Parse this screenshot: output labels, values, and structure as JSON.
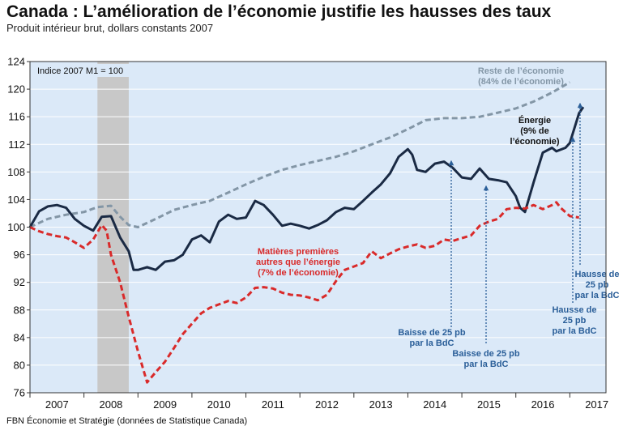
{
  "chart_data": {
    "type": "line",
    "title": "Canada : L’amélioration de l’économie justifie les hausses des taux",
    "subtitle": "Produit intérieur brut, dollars constants 2007",
    "index_note": "Indice 2007 M1 = 100",
    "source": "FBN Économie et Stratégie (données de Statistique Canada)",
    "ylim": [
      76,
      124
    ],
    "yticks": [
      76,
      80,
      84,
      88,
      92,
      96,
      100,
      104,
      108,
      112,
      116,
      120,
      124
    ],
    "xlim": [
      2007.0,
      2017.67
    ],
    "year_labels": [
      "2007",
      "2008",
      "2009",
      "2010",
      "2011",
      "2012",
      "2013",
      "2014",
      "2015",
      "2016",
      "2017"
    ],
    "recession_shading": [
      2008.25,
      2008.83
    ],
    "series": [
      {
        "name": "Reste de l’économie (84% de l’économie)",
        "color": "#8396a6",
        "style": "dashed",
        "points": [
          [
            2007.0,
            100.0
          ],
          [
            2007.33,
            101.2
          ],
          [
            2007.67,
            101.8
          ],
          [
            2008.0,
            102.2
          ],
          [
            2008.25,
            102.9
          ],
          [
            2008.5,
            103.1
          ],
          [
            2008.67,
            101.5
          ],
          [
            2008.83,
            100.3
          ],
          [
            2009.0,
            100.0
          ],
          [
            2009.33,
            101.2
          ],
          [
            2009.67,
            102.5
          ],
          [
            2010.0,
            103.2
          ],
          [
            2010.33,
            103.8
          ],
          [
            2010.67,
            105.0
          ],
          [
            2011.0,
            106.2
          ],
          [
            2011.33,
            107.3
          ],
          [
            2011.67,
            108.3
          ],
          [
            2012.0,
            109.0
          ],
          [
            2012.33,
            109.6
          ],
          [
            2012.67,
            110.2
          ],
          [
            2013.0,
            111.0
          ],
          [
            2013.33,
            112.0
          ],
          [
            2013.67,
            113.0
          ],
          [
            2014.0,
            114.2
          ],
          [
            2014.33,
            115.5
          ],
          [
            2014.67,
            115.8
          ],
          [
            2015.0,
            115.8
          ],
          [
            2015.33,
            116.0
          ],
          [
            2015.67,
            116.6
          ],
          [
            2016.0,
            117.2
          ],
          [
            2016.33,
            118.2
          ],
          [
            2016.67,
            119.5
          ],
          [
            2017.0,
            121.0
          ]
        ]
      },
      {
        "name": "Énergie (9% de l’économie)",
        "color": "#1a2a44",
        "style": "solid",
        "points": [
          [
            2007.0,
            100.0
          ],
          [
            2007.17,
            102.3
          ],
          [
            2007.33,
            103.0
          ],
          [
            2007.5,
            103.2
          ],
          [
            2007.67,
            102.8
          ],
          [
            2007.83,
            101.2
          ],
          [
            2008.0,
            100.2
          ],
          [
            2008.17,
            99.5
          ],
          [
            2008.33,
            101.5
          ],
          [
            2008.5,
            101.6
          ],
          [
            2008.67,
            98.5
          ],
          [
            2008.83,
            96.5
          ],
          [
            2008.92,
            93.8
          ],
          [
            2009.0,
            93.8
          ],
          [
            2009.17,
            94.2
          ],
          [
            2009.33,
            93.8
          ],
          [
            2009.5,
            95.0
          ],
          [
            2009.67,
            95.2
          ],
          [
            2009.83,
            96.0
          ],
          [
            2010.0,
            98.2
          ],
          [
            2010.17,
            98.8
          ],
          [
            2010.33,
            97.8
          ],
          [
            2010.5,
            100.8
          ],
          [
            2010.67,
            101.8
          ],
          [
            2010.83,
            101.2
          ],
          [
            2011.0,
            101.4
          ],
          [
            2011.17,
            103.8
          ],
          [
            2011.33,
            103.2
          ],
          [
            2011.5,
            101.8
          ],
          [
            2011.67,
            100.2
          ],
          [
            2011.83,
            100.5
          ],
          [
            2012.0,
            100.2
          ],
          [
            2012.17,
            99.8
          ],
          [
            2012.33,
            100.3
          ],
          [
            2012.5,
            101.0
          ],
          [
            2012.67,
            102.2
          ],
          [
            2012.83,
            102.8
          ],
          [
            2013.0,
            102.6
          ],
          [
            2013.17,
            103.8
          ],
          [
            2013.33,
            105.0
          ],
          [
            2013.5,
            106.2
          ],
          [
            2013.67,
            107.8
          ],
          [
            2013.83,
            110.2
          ],
          [
            2014.0,
            111.3
          ],
          [
            2014.08,
            110.5
          ],
          [
            2014.17,
            108.3
          ],
          [
            2014.33,
            108.0
          ],
          [
            2014.5,
            109.2
          ],
          [
            2014.67,
            109.5
          ],
          [
            2014.83,
            108.6
          ],
          [
            2015.0,
            107.2
          ],
          [
            2015.17,
            107.0
          ],
          [
            2015.33,
            108.5
          ],
          [
            2015.5,
            107.0
          ],
          [
            2015.67,
            106.8
          ],
          [
            2015.83,
            106.5
          ],
          [
            2016.0,
            104.5
          ],
          [
            2016.08,
            102.8
          ],
          [
            2016.17,
            102.2
          ],
          [
            2016.33,
            106.5
          ],
          [
            2016.5,
            110.8
          ],
          [
            2016.67,
            111.5
          ],
          [
            2016.75,
            111.0
          ],
          [
            2016.92,
            111.5
          ],
          [
            2017.0,
            112.2
          ],
          [
            2017.17,
            116.5
          ],
          [
            2017.25,
            117.4
          ]
        ]
      },
      {
        "name": "Matières premières autres que l’énergie (7% de l’économie)",
        "color": "#d92a2a",
        "style": "dashed",
        "points": [
          [
            2007.0,
            100.0
          ],
          [
            2007.17,
            99.4
          ],
          [
            2007.33,
            99.0
          ],
          [
            2007.5,
            98.7
          ],
          [
            2007.67,
            98.5
          ],
          [
            2007.83,
            97.8
          ],
          [
            2008.0,
            97.0
          ],
          [
            2008.17,
            98.2
          ],
          [
            2008.33,
            100.3
          ],
          [
            2008.42,
            99.5
          ],
          [
            2008.5,
            96.0
          ],
          [
            2008.67,
            92.0
          ],
          [
            2008.83,
            87.0
          ],
          [
            2009.0,
            82.0
          ],
          [
            2009.17,
            77.5
          ],
          [
            2009.33,
            79.0
          ],
          [
            2009.5,
            80.5
          ],
          [
            2009.67,
            82.5
          ],
          [
            2009.83,
            84.5
          ],
          [
            2010.0,
            86.0
          ],
          [
            2010.17,
            87.5
          ],
          [
            2010.33,
            88.3
          ],
          [
            2010.5,
            88.8
          ],
          [
            2010.67,
            89.3
          ],
          [
            2010.83,
            89.0
          ],
          [
            2011.0,
            89.8
          ],
          [
            2011.17,
            91.2
          ],
          [
            2011.33,
            91.3
          ],
          [
            2011.5,
            91.1
          ],
          [
            2011.67,
            90.5
          ],
          [
            2011.83,
            90.2
          ],
          [
            2012.0,
            90.1
          ],
          [
            2012.17,
            89.8
          ],
          [
            2012.33,
            89.4
          ],
          [
            2012.5,
            90.2
          ],
          [
            2012.67,
            92.2
          ],
          [
            2012.83,
            93.8
          ],
          [
            2013.0,
            94.3
          ],
          [
            2013.17,
            94.8
          ],
          [
            2013.33,
            96.5
          ],
          [
            2013.5,
            95.5
          ],
          [
            2013.67,
            96.2
          ],
          [
            2013.83,
            96.8
          ],
          [
            2014.0,
            97.2
          ],
          [
            2014.17,
            97.5
          ],
          [
            2014.33,
            97.0
          ],
          [
            2014.5,
            97.3
          ],
          [
            2014.67,
            98.2
          ],
          [
            2014.83,
            98.0
          ],
          [
            2015.0,
            98.4
          ],
          [
            2015.17,
            98.8
          ],
          [
            2015.33,
            100.2
          ],
          [
            2015.5,
            100.8
          ],
          [
            2015.67,
            101.2
          ],
          [
            2015.83,
            102.6
          ],
          [
            2016.0,
            102.8
          ],
          [
            2016.17,
            102.7
          ],
          [
            2016.33,
            103.2
          ],
          [
            2016.5,
            102.6
          ],
          [
            2016.67,
            103.2
          ],
          [
            2016.75,
            103.6
          ],
          [
            2016.83,
            102.8
          ],
          [
            2017.0,
            101.6
          ],
          [
            2017.17,
            101.4
          ]
        ]
      }
    ],
    "labels": {
      "reste": [
        "Reste de l’économie",
        "(84% de l’économie)"
      ],
      "energie": [
        "Énergie",
        "(9% de",
        "l’économie)"
      ],
      "matieres": [
        "Matières premières",
        "autres que l’énergie",
        "(7% de l’économie)"
      ]
    },
    "annotations": [
      {
        "lines": [
          "Baisse de 25 pb",
          "par la BdC"
        ],
        "color": "#2b5f99",
        "x": 2015.08
      },
      {
        "lines": [
          "Baisse de 25 pb",
          "par la BdC"
        ],
        "color": "#2b5f99",
        "x": 2015.5
      },
      {
        "lines": [
          "Hausse de",
          "25 pb",
          "par la BdC"
        ],
        "color": "#2b5f99",
        "x": 2017.5
      },
      {
        "lines": [
          "Hausse de",
          "25 pb",
          "par la BdC"
        ],
        "color": "#2b5f99",
        "x": 2017.58
      }
    ],
    "colors": {
      "plot_background": "#dbe9f8",
      "recession": "#c8c8c8",
      "annotation": "#2b5f99"
    }
  }
}
